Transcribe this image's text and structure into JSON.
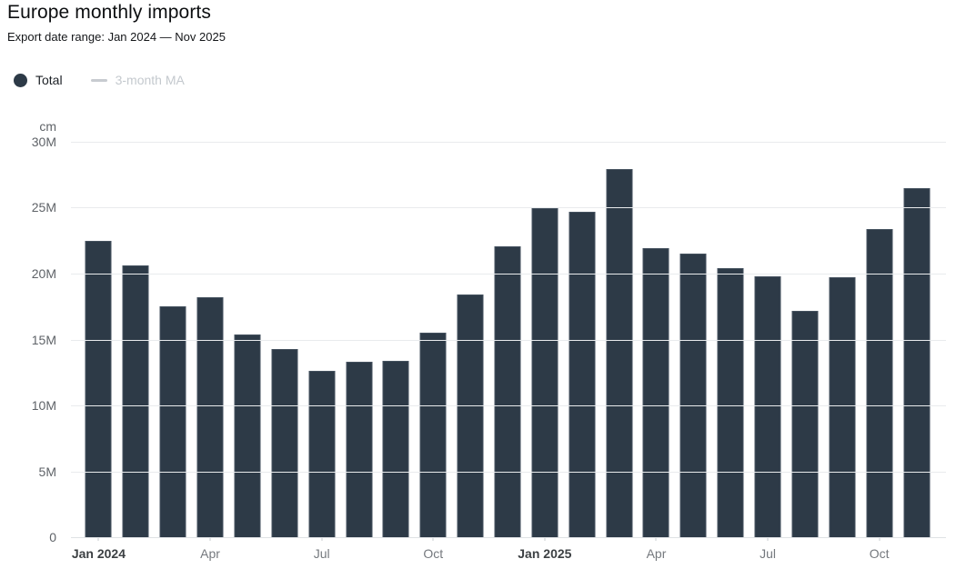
{
  "header": {
    "title": "Europe monthly imports",
    "subtitle": "Export date range: Jan 2024 — Nov 2025"
  },
  "legend": {
    "items": [
      {
        "label": "Total",
        "marker": "circle",
        "marker_color": "#2d3a47",
        "text_color": "#1c2126",
        "active": true
      },
      {
        "label": "3-month MA",
        "marker": "line",
        "marker_color": "#c7cbd0",
        "text_color": "#c4c9ce",
        "active": false
      }
    ]
  },
  "chart_data": {
    "type": "bar",
    "title": "Europe monthly imports",
    "unit_label": "cm",
    "grid": true,
    "legend_position": "top-left",
    "categories": [
      "Jan 2024",
      "Feb 2024",
      "Mar 2024",
      "Apr 2024",
      "May 2024",
      "Jun 2024",
      "Jul 2024",
      "Aug 2024",
      "Sep 2024",
      "Oct 2024",
      "Nov 2024",
      "Dec 2024",
      "Jan 2025",
      "Feb 2025",
      "Mar 2025",
      "Apr 2025",
      "May 2025",
      "Jun 2025",
      "Jul 2025",
      "Aug 2025",
      "Sep 2025",
      "Oct 2025",
      "Nov 2025"
    ],
    "series": [
      {
        "name": "Total",
        "values": [
          22.5,
          20.6,
          17.5,
          18.2,
          15.4,
          14.3,
          12.6,
          13.3,
          13.4,
          15.5,
          18.4,
          22.1,
          25.0,
          24.7,
          27.9,
          21.9,
          21.5,
          20.4,
          19.8,
          17.2,
          19.7,
          23.4,
          26.5
        ]
      }
    ],
    "values_unit": "millions",
    "ylim": [
      0,
      30
    ],
    "y_axis": {
      "unit": "cm",
      "ticks": [
        {
          "v": 0,
          "label": "0"
        },
        {
          "v": 5,
          "label": "5M"
        },
        {
          "v": 10,
          "label": "10M"
        },
        {
          "v": 15,
          "label": "15M"
        },
        {
          "v": 20,
          "label": "20M"
        },
        {
          "v": 25,
          "label": "25M"
        },
        {
          "v": 30,
          "label": "30M"
        }
      ]
    },
    "x_axis": {
      "ticks": [
        {
          "i": 0,
          "label": "Jan 2024",
          "bold": true
        },
        {
          "i": 3,
          "label": "Apr",
          "bold": false
        },
        {
          "i": 6,
          "label": "Jul",
          "bold": false
        },
        {
          "i": 9,
          "label": "Oct",
          "bold": false
        },
        {
          "i": 12,
          "label": "Jan 2025",
          "bold": true
        },
        {
          "i": 15,
          "label": "Apr",
          "bold": false
        },
        {
          "i": 18,
          "label": "Jul",
          "bold": false
        },
        {
          "i": 21,
          "label": "Oct",
          "bold": false
        }
      ]
    },
    "colors": {
      "bar_fill": "#2d3a47",
      "bar_border": "#45525f",
      "grid_line": "#e9ebed",
      "axis_line": "#dfe2e5",
      "y_tick_label": "#5f6368",
      "unit_label": "#5f6368",
      "x_label": "#75797e",
      "x_label_bold": "#3c4043",
      "x_tick_mark": "#c8ccd0"
    }
  }
}
